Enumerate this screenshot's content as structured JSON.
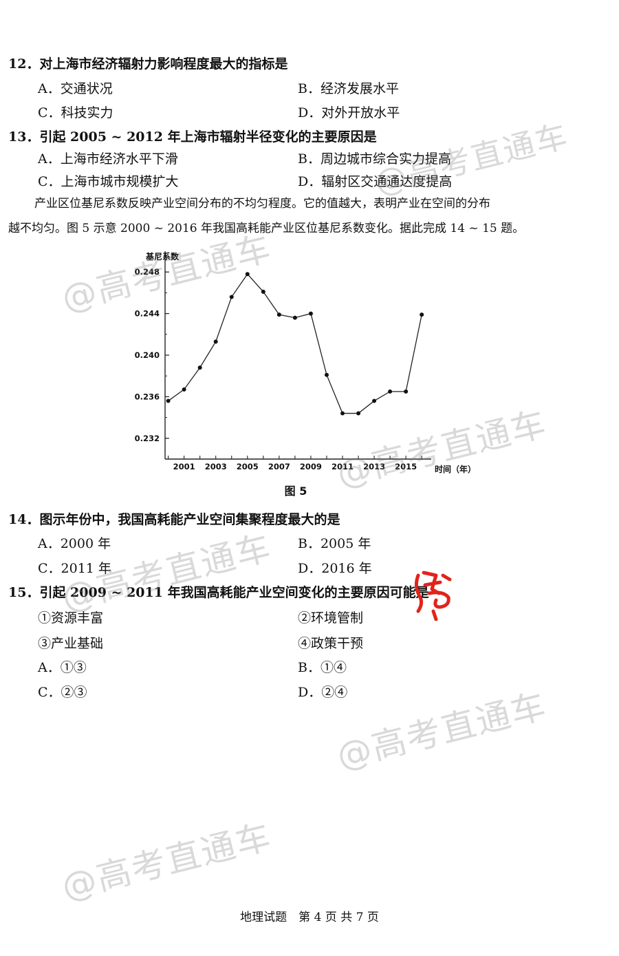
{
  "q12": {
    "stem": "12．对上海市经济辐射力影响程度最大的指标是",
    "a": "A．交通状况",
    "b": "B．经济发展水平",
    "c": "C．科技实力",
    "d": "D．对外开放水平"
  },
  "q13": {
    "stem": "13．引起 2005 ~ 2012 年上海市辐射半径变化的主要原因是",
    "a": "A．上海市经济水平下滑",
    "b": "B．周边城市综合实力提高",
    "c": "C．上海市城市规模扩大",
    "d": "D．辐射区交通通达度提高"
  },
  "passage": {
    "line1": "产业区位基尼系数反映产业空间分布的不均匀程度。它的值越大，表明产业在空间的分布",
    "line2": "越不均匀。图 5 示意 2000 ~ 2016 年我国高耗能产业区位基尼系数变化。据此完成 14 ~ 15 题。"
  },
  "chart_data": {
    "type": "line",
    "title": "",
    "ylabel": "基尼系数",
    "xlabel": "时间（年）",
    "ylim": [
      0.23,
      0.25
    ],
    "xlim": [
      1999.8,
      2016.6
    ],
    "yticks": [
      "0.232",
      "0.236",
      "0.240",
      "0.244",
      "0.248"
    ],
    "xticks": [
      "2001",
      "2003",
      "2005",
      "2007",
      "2009",
      "2011",
      "2013",
      "2015"
    ],
    "x": [
      2000,
      2001,
      2002,
      2003,
      2004,
      2005,
      2006,
      2007,
      2008,
      2009,
      2010,
      2011,
      2012,
      2013,
      2014,
      2015,
      2016
    ],
    "values": [
      0.2356,
      0.2367,
      0.2388,
      0.2413,
      0.2456,
      0.2478,
      0.2461,
      0.2439,
      0.2436,
      0.244,
      0.2381,
      0.2344,
      0.2344,
      0.2356,
      0.2365,
      0.2365,
      0.2439
    ],
    "grid": false,
    "line_color": "#222222"
  },
  "figure_caption": "图 5",
  "q14": {
    "stem": "14．图示年份中，我国高耗能产业空间集聚程度最大的是",
    "a": "A．2000 年",
    "b": "B．2005 年",
    "c": "C．2011 年",
    "d": "D．2016 年"
  },
  "q15": {
    "stem": "15．引起 2009 ~ 2011 年我国高耗能产业空间变化的主要原因可能是",
    "s1": "①资源丰富",
    "s2": "②环境管制",
    "s3": "③产业基础",
    "s4": "④政策干预",
    "a": "A．①③",
    "b": "B．①④",
    "c": "C．②③",
    "d": "D．②④"
  },
  "footer": "地理试题　第 4 页 共 7 页",
  "watermark_text": "@高考直通车",
  "stamp_color": "#e0241b"
}
